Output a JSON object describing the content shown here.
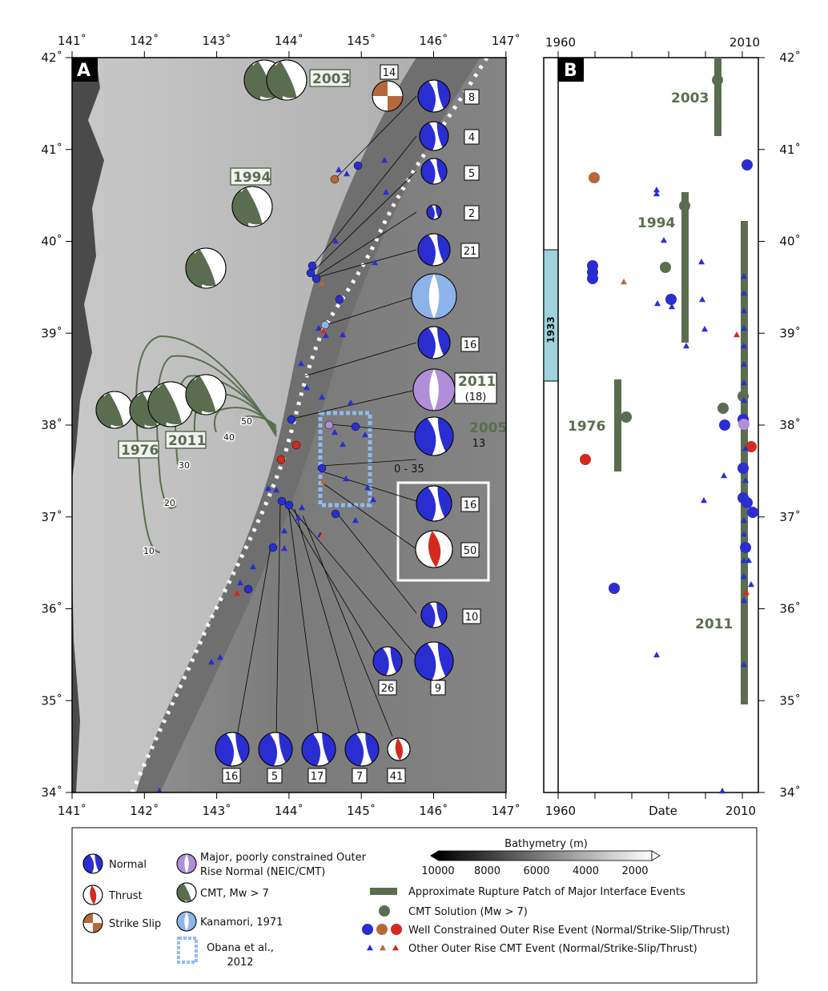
{
  "panel_a": {
    "label": "A",
    "lon_ticks": [
      "141˚",
      "142˚",
      "143˚",
      "144˚",
      "145˚",
      "146˚",
      "147˚"
    ],
    "lat_ticks": [
      "34˚",
      "35˚",
      "36˚",
      "37˚",
      "38˚",
      "39˚",
      "40˚",
      "41˚",
      "42˚"
    ],
    "year_labels": [
      "2003",
      "1994",
      "1976",
      "2011"
    ],
    "contours": [
      "10",
      "20",
      "30",
      "40",
      "50"
    ],
    "mechanisms": [
      {
        "num": "14",
        "type": "strike-slip"
      },
      {
        "num": "8",
        "type": "normal"
      },
      {
        "num": "4",
        "type": "normal"
      },
      {
        "num": "5",
        "type": "normal"
      },
      {
        "num": "2",
        "type": "normal"
      },
      {
        "num": "21",
        "type": "normal"
      },
      {
        "num": "",
        "type": "kanamori"
      },
      {
        "num": "16",
        "type": "normal"
      },
      {
        "num": "(18)",
        "year": "2011",
        "type": "major"
      },
      {
        "num": "13",
        "year": "2005",
        "type": "normal"
      },
      {
        "num": "0 - 35",
        "type": "label"
      },
      {
        "num": "16",
        "type": "normal"
      },
      {
        "num": "50",
        "type": "thrust"
      },
      {
        "num": "10",
        "type": "normal"
      },
      {
        "num": "26",
        "type": "normal"
      },
      {
        "num": "9",
        "type": "normal"
      },
      {
        "num": "16",
        "type": "normal"
      },
      {
        "num": "5",
        "type": "normal"
      },
      {
        "num": "17",
        "type": "normal"
      },
      {
        "num": "7",
        "type": "normal"
      },
      {
        "num": "41",
        "type": "thrust"
      }
    ]
  },
  "panel_b": {
    "label": "B",
    "top_ticks": [
      "1960",
      "2010"
    ],
    "bottom_ticks": [
      "1960",
      "Date",
      "2010"
    ],
    "lat_ticks": [
      "34˚",
      "35˚",
      "36˚",
      "37˚",
      "38˚",
      "39˚",
      "40˚",
      "41˚",
      "42˚"
    ],
    "year_labels": [
      "2003",
      "1994",
      "1976",
      "2011"
    ],
    "band_label": "1933"
  },
  "legend": {
    "normal": "Normal",
    "thrust": "Thrust",
    "strike_slip": "Strike Slip",
    "major_line1": "Major, poorly constrained Outer",
    "major_line2": "Rise Normal (NEIC/CMT)",
    "cmt": "CMT, Mw > 7",
    "kanamori": "Kanamori, 1971",
    "obana_line1": "Obana et al.,",
    "obana_line2": "2012",
    "bathy_title": "Bathymetry (m)",
    "bathy_ticks": [
      "10000",
      "8000",
      "6000",
      "4000",
      "2000"
    ],
    "rupture": "Approximate Rupture Patch of Major Interface Events",
    "cmt_solution": "CMT Solution (Mw > 7)",
    "well_constrained": "Well Constrained Outer Rise Event (Normal/Strike-Slip/Thrust)",
    "other_cmt": "Other Outer Rise CMT Event (Normal/Strike-Slip/Thrust)"
  },
  "colors": {
    "normal": "#2a2ed0",
    "thrust": "#d42a1e",
    "strike_slip": "#b5683a",
    "major": "#b08ed8",
    "cmt": "#5a6e4f",
    "kanamori": "#8db4ea",
    "obana": "#8fbcf0",
    "band": "#9fd2dc"
  }
}
